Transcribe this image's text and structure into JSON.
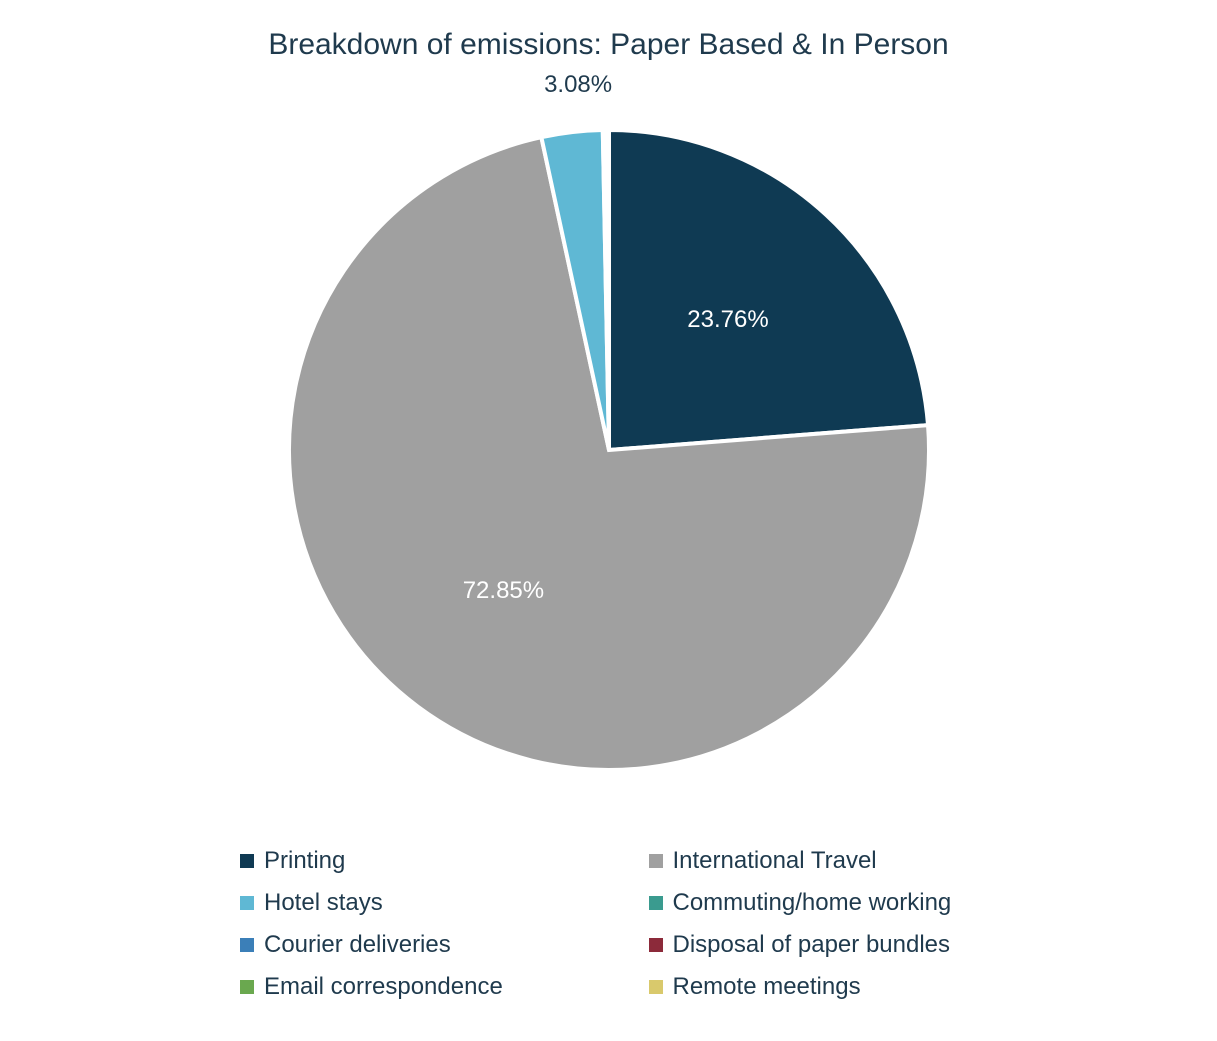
{
  "chart": {
    "type": "pie",
    "title": "Breakdown of emissions: Paper Based & In Person",
    "title_color": "#1f3a4d",
    "title_fontsize": 30,
    "background_color": "#ffffff",
    "radius": 320,
    "stroke_color": "#ffffff",
    "stroke_width": 4,
    "start_angle_deg": -90,
    "slices": [
      {
        "name": "Printing",
        "value": 23.76,
        "color": "#0f3a53",
        "label": "23.76%",
        "show_label": true,
        "label_color": "#ffffff",
        "label_dx": 0,
        "label_dy": 0
      },
      {
        "name": "International Travel",
        "value": 72.85,
        "color": "#a0a0a0",
        "label": "72.85%",
        "show_label": true,
        "label_color": "#ffffff",
        "label_dx": 0,
        "label_dy": 0
      },
      {
        "name": "Hotel stays",
        "value": 3.08,
        "color": "#5fb8d4",
        "label": "3.08%",
        "show_label": true,
        "label_color": "#1f3a4d",
        "label_dx": -10,
        "label_dy": -190
      },
      {
        "name": "Commuting/home working",
        "value": 0.1,
        "color": "#3a9b8f",
        "label": "",
        "show_label": false,
        "label_color": "#1f3a4d",
        "label_dx": 0,
        "label_dy": 0
      },
      {
        "name": "Courier deliveries",
        "value": 0.08,
        "color": "#3b7fb8",
        "label": "",
        "show_label": false,
        "label_color": "#1f3a4d",
        "label_dx": 0,
        "label_dy": 0
      },
      {
        "name": "Disposal of paper bundles",
        "value": 0.06,
        "color": "#8c2a3a",
        "label": "",
        "show_label": false,
        "label_color": "#1f3a4d",
        "label_dx": 0,
        "label_dy": 0
      },
      {
        "name": "Email correspondence",
        "value": 0.04,
        "color": "#6aa84f",
        "label": "",
        "show_label": false,
        "label_color": "#1f3a4d",
        "label_dx": 0,
        "label_dy": 0
      },
      {
        "name": "Remote meetings",
        "value": 0.03,
        "color": "#d9c96c",
        "label": "",
        "show_label": false,
        "label_color": "#1f3a4d",
        "label_dx": 0,
        "label_dy": 0
      }
    ],
    "legend": {
      "text_color": "#1f3a4d",
      "fontsize": 24,
      "items": [
        {
          "label": "Printing",
          "color": "#0f3a53"
        },
        {
          "label": "International Travel",
          "color": "#a0a0a0"
        },
        {
          "label": "Hotel stays",
          "color": "#5fb8d4"
        },
        {
          "label": "Commuting/home working",
          "color": "#3a9b8f"
        },
        {
          "label": "Courier deliveries",
          "color": "#3b7fb8"
        },
        {
          "label": "Disposal of paper bundles",
          "color": "#8c2a3a"
        },
        {
          "label": "Email correspondence",
          "color": "#6aa84f"
        },
        {
          "label": "Remote meetings",
          "color": "#d9c96c"
        }
      ]
    }
  }
}
